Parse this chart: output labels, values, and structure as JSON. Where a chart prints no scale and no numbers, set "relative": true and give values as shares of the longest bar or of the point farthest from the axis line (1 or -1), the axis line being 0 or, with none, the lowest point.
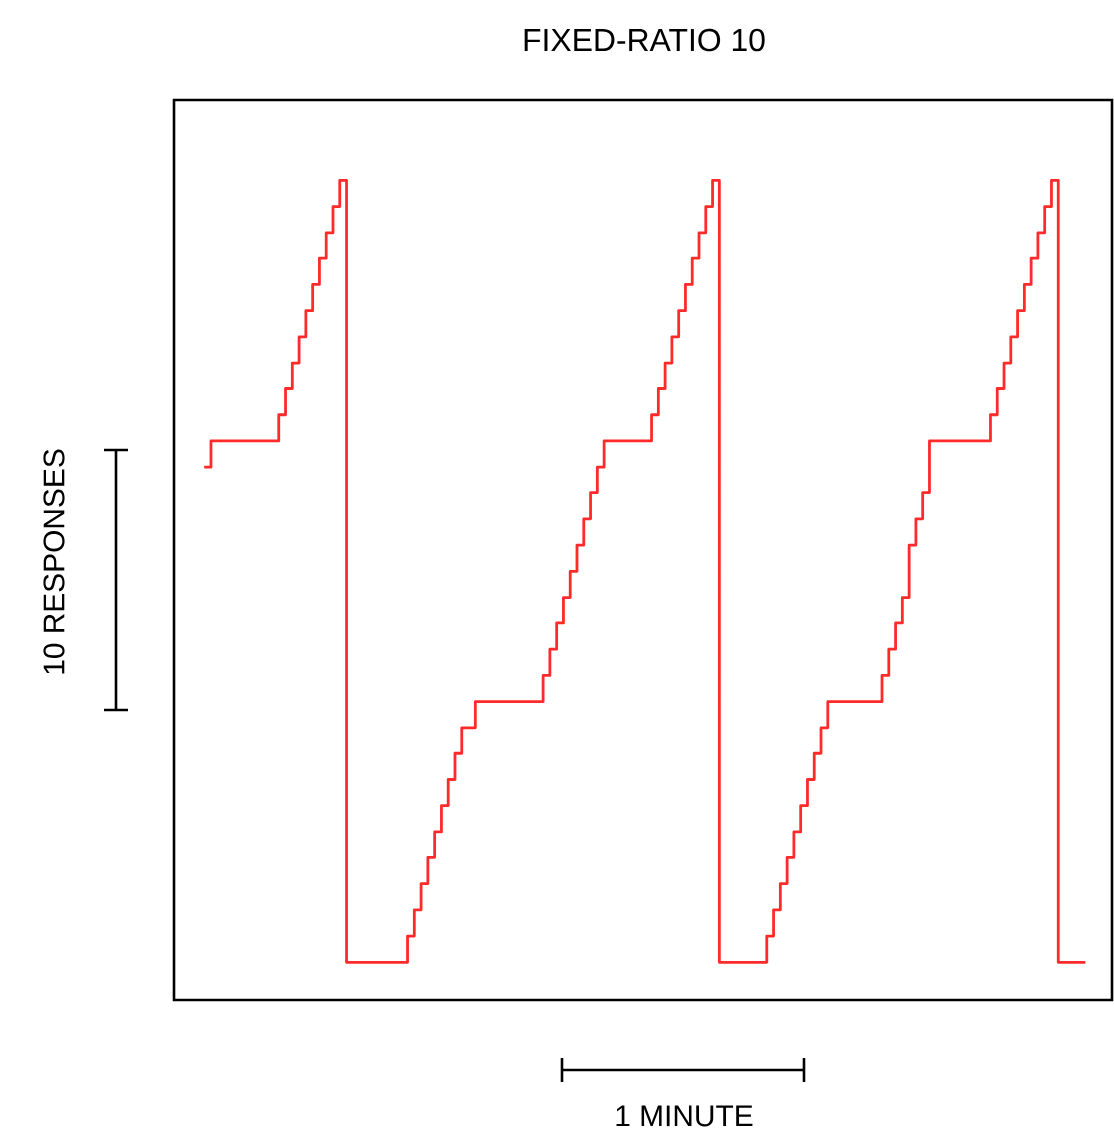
{
  "chart_data": {
    "type": "step",
    "title": "FIXED-RATIO 10",
    "relative": true,
    "annotations": [
      "10 RESPONSES",
      "1 MINUTE"
    ],
    "categories": [
      null,
      null,
      null,
      null,
      null,
      null,
      null,
      null,
      null,
      null,
      null,
      null,
      null,
      null,
      null,
      null,
      null,
      null,
      null,
      null,
      null,
      null,
      null,
      null,
      null,
      null,
      null,
      null,
      null,
      null,
      null,
      null,
      null,
      null,
      null,
      null,
      null,
      null,
      null,
      null,
      null,
      null,
      null,
      null,
      null,
      null,
      null,
      null,
      null,
      null,
      null,
      null,
      null,
      null,
      null,
      null,
      null,
      null,
      null,
      null,
      null,
      null,
      null,
      null,
      null,
      null,
      null,
      null,
      null,
      null,
      null,
      null,
      null,
      null,
      null,
      null,
      null,
      null,
      null,
      null,
      null,
      null,
      null,
      null,
      null,
      null,
      null,
      null,
      null,
      null,
      null,
      null,
      null,
      null,
      null,
      null,
      null,
      null,
      null,
      null,
      null,
      null,
      null,
      null,
      null,
      null,
      null,
      null,
      null,
      null,
      null,
      null,
      null,
      null,
      null,
      null,
      null,
      null,
      null,
      null,
      null,
      null,
      null,
      null,
      null,
      null,
      null,
      null,
      null,
      null,
      null
    ],
    "series": [
      {
        "color": "#ff2a2a",
        "values": [
          0.65,
          0.682,
          0.682,
          0.682,
          0.682,
          0.682,
          0.682,
          0.682,
          0.682,
          0.682,
          0.682,
          0.714,
          0.746,
          0.777,
          0.809,
          0.841,
          0.873,
          0.905,
          0.936,
          0.968,
          1,
          0.046,
          0.046,
          0.046,
          0.046,
          0.046,
          0.046,
          0.046,
          0.046,
          0.046,
          0.078,
          0.11,
          0.142,
          0.174,
          0.205,
          0.237,
          0.269,
          0.301,
          0.332,
          0.332,
          0.364,
          0.364,
          0.364,
          0.364,
          0.364,
          0.364,
          0.364,
          0.364,
          0.364,
          0.364,
          0.396,
          0.428,
          0.46,
          0.491,
          0.523,
          0.555,
          0.587,
          0.619,
          0.65,
          0.682,
          0.682,
          0.682,
          0.682,
          0.682,
          0.682,
          0.682,
          0.714,
          0.746,
          0.777,
          0.809,
          0.841,
          0.873,
          0.905,
          0.936,
          0.968,
          1,
          0.046,
          0.046,
          0.046,
          0.046,
          0.046,
          0.046,
          0.046,
          0.078,
          0.11,
          0.142,
          0.174,
          0.205,
          0.237,
          0.269,
          0.301,
          0.332,
          0.364,
          0.364,
          0.364,
          0.364,
          0.364,
          0.364,
          0.364,
          0.364,
          0.396,
          0.428,
          0.46,
          0.491,
          0.555,
          0.587,
          0.619,
          0.682,
          0.682,
          0.682,
          0.682,
          0.682,
          0.682,
          0.682,
          0.682,
          0.682,
          0.714,
          0.746,
          0.777,
          0.809,
          0.841,
          0.873,
          0.905,
          0.936,
          0.968,
          1,
          0.046,
          0.046,
          0.046,
          0.046,
          0.046
        ]
      }
    ]
  }
}
